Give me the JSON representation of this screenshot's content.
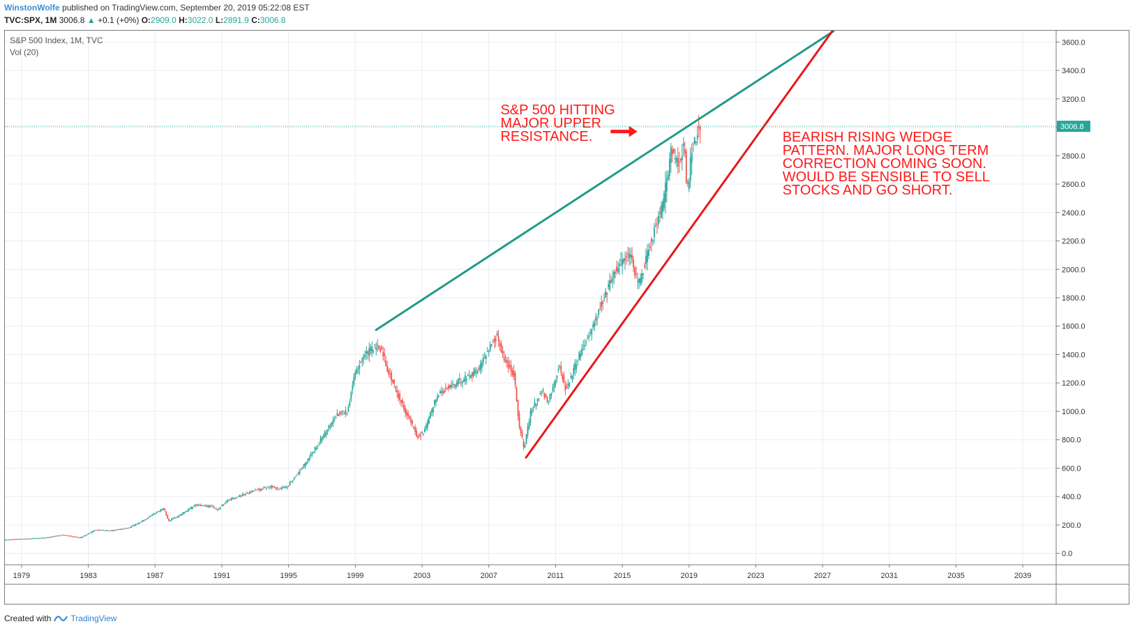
{
  "header": {
    "author": "WinstonWolfe",
    "published": "published on TradingView.com, September 20, 2019 05:22:08 EST",
    "symbol": "TVC:SPX, 1M",
    "last": "3006.8",
    "change": "+0.1 (+0%)",
    "o_label": "O:",
    "o_value": "2909.0",
    "h_label": "H:",
    "h_value": "3022.0",
    "l_label": "L:",
    "l_value": "2891.9",
    "c_label": "C:",
    "c_value": "3006.8"
  },
  "footer": {
    "created_with": "Created with",
    "brand": "TradingView"
  },
  "colors": {
    "up": "#26a69a",
    "down": "#ef5350",
    "resistance": "#1f9a86",
    "support": "#e8171b",
    "annotation": "#ff1a1a",
    "grid": "#e9eef3"
  },
  "chart_data": {
    "type": "candlestick",
    "title": "S&P 500 Index, 1M, TVC",
    "indicator": "Vol (20)",
    "interval": "1M",
    "x_range": [
      1978.0,
      2041.0
    ],
    "y_range": [
      -80,
      3680
    ],
    "x_ticks": [
      1979,
      1983,
      1987,
      1991,
      1995,
      1999,
      2003,
      2007,
      2011,
      2015,
      2019,
      2023,
      2027,
      2031,
      2035,
      2039
    ],
    "y_ticks": [
      "0.0",
      "200.0",
      "400.0",
      "600.0",
      "800.0",
      "1000.0",
      "1200.0",
      "1400.0",
      "1600.0",
      "1800.0",
      "2000.0",
      "2200.0",
      "2400.0",
      "2600.0",
      "2800.0",
      "3000.0",
      "3200.0",
      "3400.0",
      "3600.0"
    ],
    "last_price_label": "3006.8",
    "last_price": 3006.8,
    "price_path": [
      [
        1978.0,
        95
      ],
      [
        1980.5,
        110
      ],
      [
        1981.5,
        130
      ],
      [
        1982.6,
        110
      ],
      [
        1983.5,
        165
      ],
      [
        1984.5,
        160
      ],
      [
        1985.5,
        180
      ],
      [
        1986.5,
        240
      ],
      [
        1987.6,
        320
      ],
      [
        1987.9,
        230
      ],
      [
        1988.5,
        265
      ],
      [
        1989.5,
        340
      ],
      [
        1990.5,
        330
      ],
      [
        1990.8,
        305
      ],
      [
        1991.5,
        380
      ],
      [
        1993.0,
        440
      ],
      [
        1994.0,
        470
      ],
      [
        1994.5,
        455
      ],
      [
        1995.0,
        470
      ],
      [
        1996.0,
        620
      ],
      [
        1997.0,
        800
      ],
      [
        1998.0,
        980
      ],
      [
        1998.6,
        1000
      ],
      [
        1999.0,
        1230
      ],
      [
        1999.5,
        1380
      ],
      [
        2000.2,
        1450
      ],
      [
        2000.7,
        1430
      ],
      [
        2001.0,
        1300
      ],
      [
        2001.7,
        1100
      ],
      [
        2002.5,
        900
      ],
      [
        2002.8,
        820
      ],
      [
        2003.2,
        850
      ],
      [
        2004.0,
        1120
      ],
      [
        2005.0,
        1190
      ],
      [
        2006.0,
        1260
      ],
      [
        2006.5,
        1300
      ],
      [
        2007.0,
        1430
      ],
      [
        2007.6,
        1530
      ],
      [
        2008.0,
        1370
      ],
      [
        2008.6,
        1260
      ],
      [
        2008.9,
        900
      ],
      [
        2009.2,
        740
      ],
      [
        2009.6,
        1000
      ],
      [
        2010.3,
        1150
      ],
      [
        2010.6,
        1050
      ],
      [
        2011.3,
        1320
      ],
      [
        2011.7,
        1150
      ],
      [
        2012.5,
        1400
      ],
      [
        2013.5,
        1650
      ],
      [
        2014.5,
        1950
      ],
      [
        2015.0,
        2060
      ],
      [
        2015.5,
        2100
      ],
      [
        2015.9,
        1950
      ],
      [
        2016.1,
        1900
      ],
      [
        2016.7,
        2170
      ],
      [
        2017.5,
        2450
      ],
      [
        2018.0,
        2820
      ],
      [
        2018.5,
        2750
      ],
      [
        2018.8,
        2900
      ],
      [
        2018.95,
        2500
      ],
      [
        2019.2,
        2800
      ],
      [
        2019.5,
        2950
      ],
      [
        2019.7,
        3006.8
      ]
    ],
    "trendlines": [
      {
        "name": "upper resistance",
        "from": [
          2000.2,
          1570
        ],
        "to": [
          2027.7,
          3680
        ]
      },
      {
        "name": "lower support",
        "from": [
          2009.2,
          670
        ],
        "to": [
          2027.6,
          3680
        ]
      }
    ],
    "arrow": {
      "from": [
        2014.3,
        2970
      ],
      "to": [
        2015.9,
        2970
      ]
    },
    "annotations": [
      {
        "anchor": [
          2007.7,
          3090
        ],
        "lines": [
          "S&P 500 HITTING",
          "MAJOR UPPER",
          "RESISTANCE."
        ]
      },
      {
        "anchor": [
          2024.6,
          2900
        ],
        "lines": [
          "BEARISH RISING WEDGE",
          "PATTERN. MAJOR LONG TERM",
          "CORRECTION COMING SOON.",
          "WOULD BE SENSIBLE TO SELL",
          "STOCKS AND GO SHORT."
        ]
      }
    ]
  }
}
